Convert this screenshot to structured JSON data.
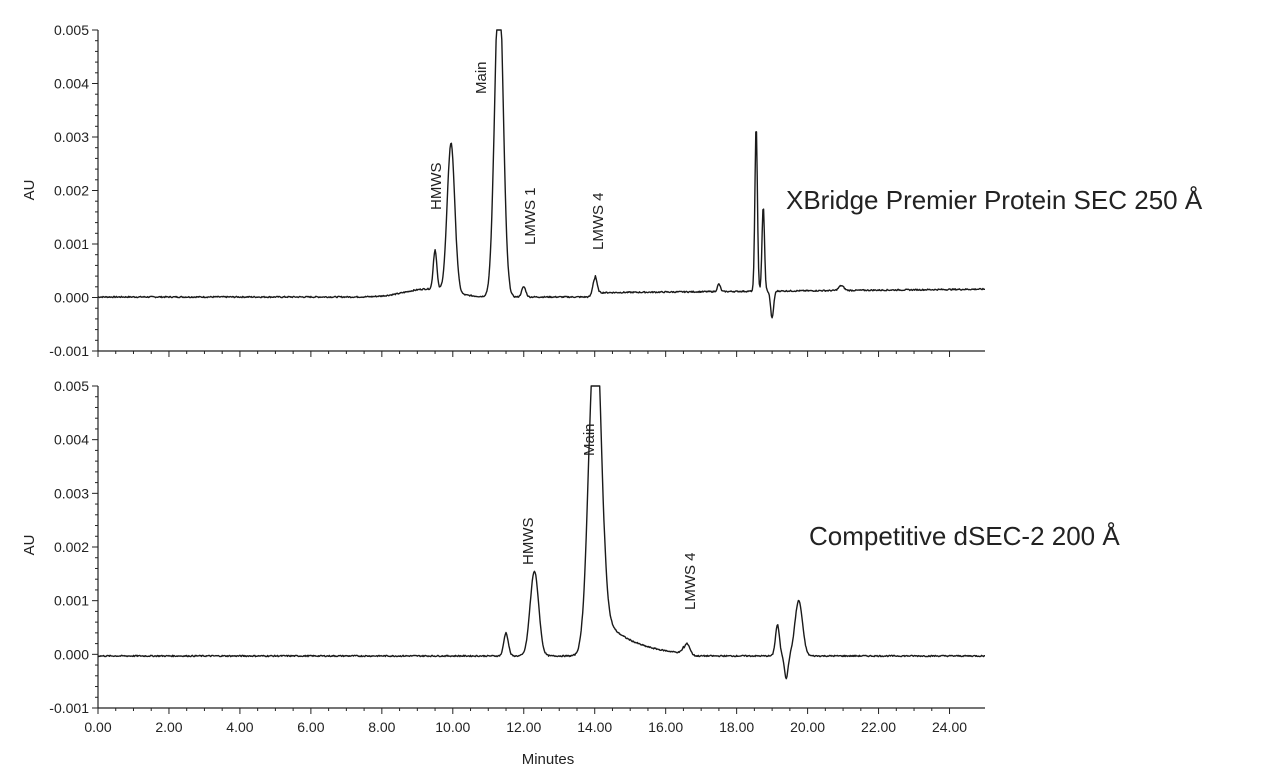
{
  "chart_data": [
    {
      "type": "line",
      "title": "XBridge Premier Protein SEC 250 Å",
      "ylabel": "AU",
      "xlabel": "",
      "xlim": [
        0,
        25
      ],
      "ylim": [
        -0.001,
        0.005
      ],
      "y_ticks": [
        "-0.001",
        "0.000",
        "0.001",
        "0.002",
        "0.003",
        "0.004",
        "0.005"
      ],
      "x_ticks": [],
      "baseline": 1e-05,
      "peaks": [
        {
          "x": 9.5,
          "y": 0.00075,
          "label": ""
        },
        {
          "x": 9.95,
          "y": 0.0028,
          "label": "HMWS"
        },
        {
          "x": 11.3,
          "y": 0.006,
          "label": "Main"
        },
        {
          "x": 12.0,
          "y": 0.0002,
          "label": "LMWS 1"
        },
        {
          "x": 14.0,
          "y": 0.00035,
          "label": "LMWS 4"
        },
        {
          "x": 17.5,
          "y": 0.00015,
          "label": ""
        },
        {
          "x": 18.55,
          "y": 0.0031,
          "label": ""
        },
        {
          "x": 18.75,
          "y": 0.0016,
          "label": ""
        },
        {
          "x": 19.0,
          "y": -0.0005,
          "label": ""
        },
        {
          "x": 20.95,
          "y": 0.0001,
          "label": ""
        }
      ],
      "peak_labels": [
        "HMWS",
        "Main",
        "LMWS 1",
        "LMWS 4"
      ]
    },
    {
      "type": "line",
      "title": "Competitive dSEC-2 200 Å",
      "ylabel": "AU",
      "xlabel": "Minutes",
      "xlim": [
        0,
        25
      ],
      "ylim": [
        -0.001,
        0.005
      ],
      "y_ticks": [
        "-0.001",
        "0.000",
        "0.001",
        "0.002",
        "0.003",
        "0.004",
        "0.005"
      ],
      "x_ticks": [
        "0.00",
        "2.00",
        "4.00",
        "6.00",
        "8.00",
        "10.00",
        "12.00",
        "14.00",
        "16.00",
        "18.00",
        "20.00",
        "22.00",
        "24.00"
      ],
      "baseline": -3e-05,
      "peaks": [
        {
          "x": 11.5,
          "y": 0.0004,
          "label": ""
        },
        {
          "x": 12.3,
          "y": 0.00155,
          "label": "HMWS"
        },
        {
          "x": 14.0,
          "y": 0.006,
          "label": "Main"
        },
        {
          "x": 16.6,
          "y": 0.0002,
          "label": "LMWS 4"
        },
        {
          "x": 19.15,
          "y": 0.00055,
          "label": ""
        },
        {
          "x": 19.4,
          "y": -0.00045,
          "label": ""
        },
        {
          "x": 19.75,
          "y": 0.001,
          "label": ""
        }
      ],
      "peak_labels": [
        "HMWS",
        "Main",
        "LMWS 4"
      ]
    }
  ]
}
